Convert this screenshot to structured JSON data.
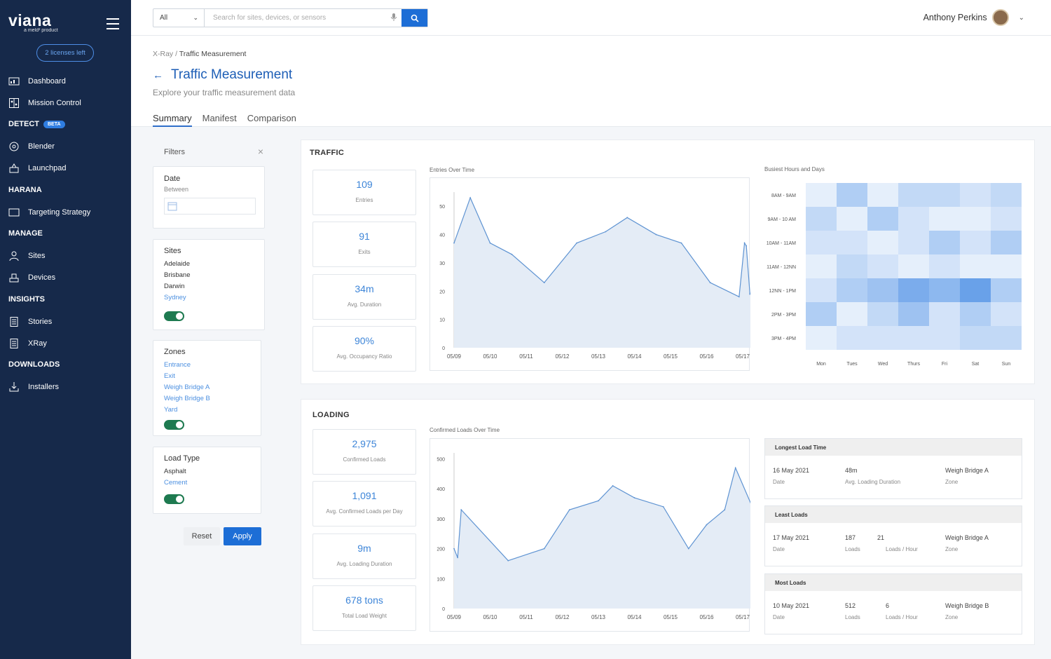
{
  "brand": {
    "name": "viana",
    "tagline": "a meld² product",
    "licenses": "2 licenses left"
  },
  "nav": {
    "dashboard": "Dashboard",
    "mission_control": "Mission Control",
    "detect": "DETECT",
    "beta": "BETA",
    "blender": "Blender",
    "launchpad": "Launchpad",
    "harana": "HARANA",
    "targeting": "Targeting Strategy",
    "manage": "MANAGE",
    "sites": "Sites",
    "devices": "Devices",
    "insights": "INSIGHTS",
    "stories": "Stories",
    "xray": "XRay",
    "downloads": "DOWNLOADS",
    "installers": "Installers"
  },
  "search": {
    "scope": "All",
    "placeholder": "Search for sites, devices, or sensors"
  },
  "user": {
    "name": "Anthony Perkins"
  },
  "breadcrumb": {
    "root": "X-Ray",
    "sep": " / ",
    "current": "Traffic Measurement"
  },
  "page": {
    "title": "Traffic Measurement",
    "subtitle": "Explore your traffic measurement data"
  },
  "tabs": [
    "Summary",
    "Manifest",
    "Comparison"
  ],
  "filters": {
    "title": "Filters",
    "date": {
      "title": "Date",
      "sub": "Between"
    },
    "sites": {
      "title": "Sites",
      "options": [
        "Adelaide",
        "Brisbane",
        "Darwin",
        "Sydney"
      ]
    },
    "zones": {
      "title": "Zones",
      "options": [
        "Entrance",
        "Exit",
        "Weigh Bridge A",
        "Weigh Bridge B",
        "Yard"
      ]
    },
    "load_type": {
      "title": "Load Type",
      "options": [
        "Asphalt",
        "Cement"
      ]
    },
    "reset": "Reset",
    "apply": "Apply"
  },
  "traffic": {
    "title": "TRAFFIC",
    "kpis": [
      {
        "value": "109",
        "label": "Entries"
      },
      {
        "value": "91",
        "label": "Exits"
      },
      {
        "value": "34m",
        "label": "Avg. Duration"
      },
      {
        "value": "90%",
        "label": "Avg. Occupancy Ratio"
      }
    ],
    "entries_title": "Entries Over Time",
    "heatmap_title": "Busiest Hours and Days"
  },
  "loading": {
    "title": "LOADING",
    "kpis": [
      {
        "value": "2,975",
        "label": "Confirmed Loads"
      },
      {
        "value": "1,091",
        "label": "Avg. Confirmed Loads per Day"
      },
      {
        "value": "9m",
        "label": "Avg. Loading Duration"
      },
      {
        "value": "678 tons",
        "label": "Total Load Weight"
      }
    ],
    "chart_title": "Confirmed Loads Over Time",
    "longest": {
      "title": "Longest Load Time",
      "date": "16 May 2021",
      "date_l": "Date",
      "dur": "48m",
      "dur_l": "Avg. Loading Duration",
      "zone": "Weigh Bridge A",
      "zone_l": "Zone"
    },
    "least": {
      "title": "Least Loads",
      "date": "17 May 2021",
      "date_l": "Date",
      "loads": "187",
      "loads_l": "Loads",
      "ph": "21",
      "ph_l": "Loads / Hour",
      "zone": "Weigh Bridge A",
      "zone_l": "Zone"
    },
    "most": {
      "title": "Most Loads",
      "date": "10 May 2021",
      "date_l": "Date",
      "loads": "512",
      "loads_l": "Loads",
      "ph": "6",
      "ph_l": "Loads / Hour",
      "zone": "Weigh Bridge B",
      "zone_l": "Zone"
    }
  },
  "chart_data": [
    {
      "type": "area",
      "title": "Entries Over Time",
      "categories": [
        "05/09",
        "05/10",
        "05/11",
        "05/12",
        "05/13",
        "05/14",
        "05/15",
        "05/16",
        "05/17"
      ],
      "ylim": [
        0,
        55
      ],
      "yticks": [
        0,
        10,
        20,
        30,
        40,
        50
      ],
      "x": [
        0,
        0.45,
        1,
        1.6,
        2.5,
        3.4,
        4.2,
        4.8,
        5.6,
        6.3,
        7.1,
        7.9,
        8.05,
        8.1,
        8.2,
        8.3
      ],
      "y": [
        37,
        53,
        37,
        33,
        23,
        37,
        41,
        46,
        40,
        37,
        23,
        18,
        37,
        36,
        19,
        21
      ],
      "color": "#5e93d2"
    },
    {
      "type": "area",
      "title": "Confirmed Loads Over Time",
      "categories": [
        "05/09",
        "05/10",
        "05/11",
        "05/12",
        "05/13",
        "05/14",
        "05/15",
        "05/16",
        "05/17"
      ],
      "ylim": [
        0,
        520
      ],
      "yticks": [
        0,
        100,
        200,
        300,
        400,
        500
      ],
      "x": [
        0,
        0.1,
        0.2,
        1.5,
        2.5,
        3.2,
        4.0,
        4.4,
        5.0,
        5.8,
        6.5,
        7.0,
        7.5,
        7.8,
        8.3
      ],
      "y": [
        200,
        170,
        330,
        160,
        200,
        330,
        360,
        410,
        370,
        340,
        200,
        280,
        330,
        470,
        330
      ],
      "color": "#5e93d2"
    },
    {
      "type": "heatmap",
      "title": "Busiest Hours and Days",
      "rows": [
        "8AM - 9AM",
        "9AM - 10 AM",
        "10AM - 11AM",
        "11AM - 12NN",
        "12NN - 1PM",
        "2PM - 3PM",
        "3PM - 4PM"
      ],
      "cols": [
        "Mon",
        "Tues",
        "Wed",
        "Thurs",
        "Fri",
        "Sat",
        "Sun"
      ],
      "values": [
        [
          1,
          4,
          1,
          3,
          3,
          2,
          3
        ],
        [
          3,
          1,
          4,
          2,
          1,
          1,
          2
        ],
        [
          2,
          2,
          1,
          2,
          4,
          2,
          4
        ],
        [
          1,
          3,
          2,
          1,
          2,
          1,
          1
        ],
        [
          2,
          4,
          5,
          7,
          6,
          8,
          4
        ],
        [
          4,
          1,
          3,
          5,
          2,
          4,
          2
        ],
        [
          1,
          2,
          2,
          2,
          2,
          3,
          3
        ]
      ],
      "color": "#2f7de1"
    }
  ]
}
